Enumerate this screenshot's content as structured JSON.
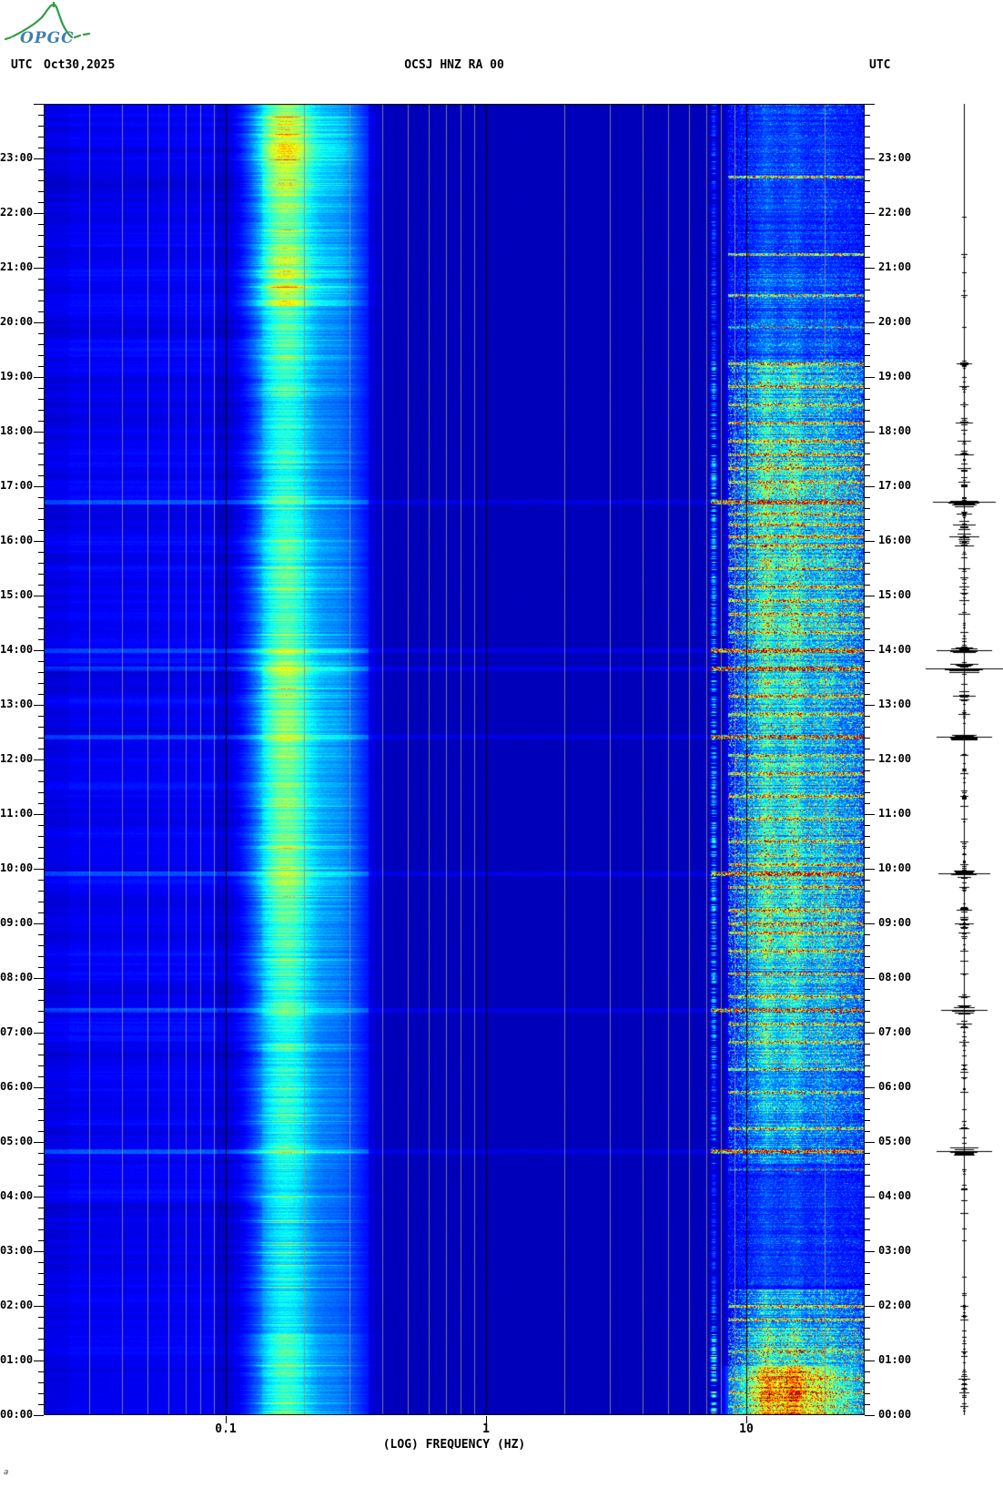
{
  "header": {
    "logo_text": "OPGC",
    "utc_left": "UTC",
    "date": "Oct30,2025",
    "title": "OCSJ HNZ RA 00",
    "utc_right": "UTC"
  },
  "axes": {
    "xlabel": "(LOG) FREQUENCY (HZ)",
    "freq_tick_labels": [
      "0.1",
      "1",
      "10"
    ],
    "hour_labels": [
      "23:00",
      "22:00",
      "21:00",
      "20:00",
      "19:00",
      "18:00",
      "17:00",
      "16:00",
      "15:00",
      "14:00",
      "13:00",
      "12:00",
      "11:00",
      "10:00",
      "09:00",
      "08:00",
      "07:00",
      "06:00",
      "05:00",
      "04:00",
      "03:00",
      "02:00",
      "01:00",
      "00:00"
    ],
    "minor_ticks_per_hour": 5
  },
  "footer": {
    "corner_mark": "a"
  },
  "chart_data": {
    "type": "heatmap",
    "subtype": "seismic-spectrogram",
    "title": "OCSJ HNZ RA 00",
    "date": "Oct30,2025",
    "timezone": "UTC",
    "x_axis": {
      "label": "(LOG) FREQUENCY (HZ)",
      "scale": "log",
      "min_hz": 0.02,
      "max_hz": 28.5,
      "decade_ticks": [
        0.1,
        1,
        10
      ],
      "grid": "mantissa-lines"
    },
    "y_axis": {
      "label": "UTC time",
      "start": "00:00",
      "end": "24:00",
      "direction": "bottom-to-top",
      "major_step_min": 60,
      "minor_step_min": 12
    },
    "palette": "jet",
    "colors": {
      "grid_gray": "#8f8f80",
      "grid_decade": "#000000",
      "text": "#000000",
      "trace": "#000000",
      "logo_green": "#2f9e44",
      "logo_blue": "#3f7fae",
      "background_deep_blue": "#0000bb",
      "microseism_cyan": "#00ffe0",
      "event_red": "#a00000",
      "event_yellow": "#ffe000"
    },
    "field": {
      "low_band_v": 0.115,
      "low_band_noise": 0.05,
      "low_edge_v": 0.1,
      "dark_col_v": 0.075,
      "under_stripe_v": 0.1,
      "mid_dark_v": 0.058,
      "hf_base_v": 0.1,
      "micro_center_log10": -0.77,
      "micro_sigma_log10": 0.125,
      "micro2_center_log10": -0.56,
      "micro2_sigma_log10": 0.1,
      "micro2_amp": 0.38,
      "micro_gain_base": 0.08,
      "micro_gain_scale": 0.44,
      "narrow_line_hz": 7.5,
      "tex_bumps_log10": [
        [
          1.02,
          0.05,
          0.5
        ],
        [
          1.08,
          0.035,
          0.9
        ],
        [
          1.14,
          0.04,
          0.6
        ],
        [
          1.19,
          0.035,
          0.85
        ],
        [
          1.26,
          0.05,
          0.55
        ],
        [
          1.32,
          0.04,
          0.5
        ],
        [
          1.4,
          0.06,
          0.45
        ]
      ],
      "night_blob": {
        "before_hour": 0.9,
        "center_log10": 1.17,
        "sigma_log10": 0.2,
        "amp": 0.24
      }
    },
    "microseism_profile": [
      [
        0,
        1.5,
        0.6
      ],
      [
        1.5,
        4.5,
        0.42
      ],
      [
        4.5,
        7,
        0.5
      ],
      [
        7,
        9,
        0.58
      ],
      [
        9,
        12,
        0.68
      ],
      [
        12,
        14,
        0.72
      ],
      [
        14,
        16,
        0.62
      ],
      [
        16,
        19,
        0.52
      ],
      [
        19,
        20.3,
        0.62
      ],
      [
        20.3,
        21.2,
        0.88
      ],
      [
        21.2,
        22.3,
        0.72
      ],
      [
        22.3,
        23.8,
        0.95
      ],
      [
        23.8,
        24,
        0.75
      ]
    ],
    "hf_envelope": [
      [
        0,
        1.6,
        0.95
      ],
      [
        1.6,
        2.3,
        0.55
      ],
      [
        2.3,
        4.6,
        0.22
      ],
      [
        4.6,
        5.1,
        0.5
      ],
      [
        5.1,
        6.4,
        0.55
      ],
      [
        6.4,
        8.4,
        0.75
      ],
      [
        8.4,
        10.6,
        0.95
      ],
      [
        10.6,
        12.4,
        0.8
      ],
      [
        12.4,
        14.2,
        0.85
      ],
      [
        14.2,
        17.8,
        0.95
      ],
      [
        17.8,
        19.3,
        0.8
      ],
      [
        19.3,
        20.9,
        0.35
      ],
      [
        20.9,
        24,
        0.25
      ]
    ],
    "events": [
      [
        "22:40",
        0.85,
        0,
        0
      ],
      [
        "21:15",
        0.8,
        3,
        0
      ],
      [
        "20:30",
        0.8,
        3,
        0
      ],
      [
        "19:55",
        0.5,
        2,
        0
      ],
      [
        "19:15",
        0.85,
        8,
        0
      ],
      [
        "18:50",
        0.9,
        5,
        0
      ],
      [
        "18:30",
        0.85,
        4,
        0
      ],
      [
        "18:10",
        0.9,
        9,
        0
      ],
      [
        "17:50",
        0.95,
        7,
        0
      ],
      [
        "17:35",
        0.9,
        10,
        0
      ],
      [
        "17:20",
        0.9,
        7,
        0
      ],
      [
        "17:05",
        0.85,
        6,
        0
      ],
      [
        "16:43",
        1.0,
        34,
        1
      ],
      [
        "16:30",
        0.9,
        8,
        0
      ],
      [
        "16:18",
        0.9,
        12,
        0
      ],
      [
        "16:05",
        0.95,
        16,
        0
      ],
      [
        "15:55",
        0.9,
        10,
        0
      ],
      [
        "15:30",
        0.9,
        6,
        0
      ],
      [
        "15:10",
        0.9,
        5,
        0
      ],
      [
        "14:55",
        0.9,
        5,
        0
      ],
      [
        "14:40",
        0.9,
        6,
        0
      ],
      [
        "14:20",
        0.85,
        4,
        0
      ],
      [
        "14:00",
        1.0,
        30,
        1
      ],
      [
        "13:40",
        1.0,
        42,
        1
      ],
      [
        "13:10",
        0.95,
        12,
        0
      ],
      [
        "12:50",
        0.85,
        6,
        0
      ],
      [
        "12:25",
        0.9,
        30,
        1
      ],
      [
        "12:05",
        0.85,
        4,
        0
      ],
      [
        "11:45",
        0.9,
        4,
        0
      ],
      [
        "11:20",
        0.9,
        4,
        0
      ],
      [
        "10:55",
        0.85,
        3,
        0
      ],
      [
        "10:30",
        0.85,
        4,
        0
      ],
      [
        "10:05",
        0.9,
        4,
        0
      ],
      [
        "09:55",
        0.9,
        28,
        1
      ],
      [
        "09:40",
        0.9,
        5,
        0
      ],
      [
        "09:15",
        0.9,
        8,
        0
      ],
      [
        "09:00",
        0.95,
        10,
        0
      ],
      [
        "08:50",
        0.9,
        6,
        0
      ],
      [
        "08:30",
        0.9,
        4,
        0
      ],
      [
        "08:05",
        0.9,
        4,
        0
      ],
      [
        "07:40",
        0.9,
        6,
        0
      ],
      [
        "07:25",
        0.85,
        25,
        1
      ],
      [
        "07:10",
        0.85,
        8,
        0
      ],
      [
        "06:50",
        0.85,
        5,
        0
      ],
      [
        "06:20",
        0.8,
        3,
        0
      ],
      [
        "05:55",
        0.8,
        4,
        0
      ],
      [
        "05:15",
        0.85,
        5,
        0
      ],
      [
        "04:50",
        1.0,
        30,
        1
      ],
      [
        "04:30",
        0.4,
        2,
        0
      ],
      [
        "02:00",
        0.9,
        4,
        0
      ],
      [
        "01:45",
        0.9,
        4,
        0
      ],
      [
        "01:10",
        0.7,
        3,
        0
      ],
      [
        "00:40",
        0.8,
        6,
        0
      ],
      [
        "00:25",
        0.75,
        5,
        0
      ],
      [
        "00:10",
        0.7,
        4,
        0
      ]
    ],
    "events_schema": [
      "time_utc",
      "spectral_intensity_0to1",
      "trace_halfwidth_px",
      "broadband_event"
    ]
  }
}
